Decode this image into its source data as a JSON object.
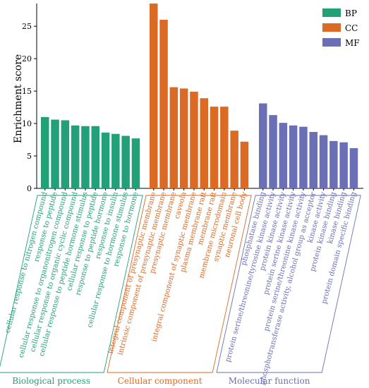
{
  "chart_data": {
    "type": "bar",
    "ylabel": "Enrichment score",
    "xlabel": "",
    "ylim": [
      0,
      28.5
    ],
    "yticks": [
      0,
      5,
      10,
      15,
      20,
      25
    ],
    "grid": false,
    "legend_position": "top-right",
    "series": [
      {
        "name": "BP",
        "group_label": "Biological process",
        "color": "#22a078",
        "categories": [
          "cellular response to nitrogen compound",
          "response to peptide",
          "cellular response to organonitrogen compound",
          "cellular response to organic cyclic compound",
          "cellular response to peptide hormone stimulus",
          "cellular response to peptide",
          "response to peptide hormone",
          "response to insulin",
          "cellular response to hormone stimulus",
          "response to hormone"
        ],
        "values": [
          11.0,
          10.6,
          10.5,
          9.7,
          9.6,
          9.6,
          8.6,
          8.4,
          8.1,
          7.7
        ]
      },
      {
        "name": "CC",
        "group_label": "Cellular component",
        "color": "#db6a25",
        "categories": [
          "integral component of presynaptic membrane",
          "intrinsic component of presynaptic membrane",
          "presynaptic membrane",
          "caveola",
          "integral component of synaptic membrane",
          "plasma membrane raft",
          "membrane raft",
          "membrane microdomain",
          "synaptic membrane",
          "neuronal cell body"
        ],
        "values": [
          28.5,
          26.0,
          15.6,
          15.4,
          14.9,
          13.9,
          12.6,
          12.6,
          8.9,
          7.2
        ]
      },
      {
        "name": "MF",
        "group_label": "Molecular function",
        "color": "#6b6fb5",
        "categories": [
          "phosphatase binding",
          "protein serine/threonine/tyrosine kinase activity",
          "protein kinase activity",
          "protein serine kinase activity",
          "protein serine/threonine kinase activity",
          "phosphotransferase activity, alcohol group as acceptor",
          "kinase activity",
          "protein kinase binding",
          "kinase binding",
          "protein domain specific binding"
        ],
        "values": [
          13.1,
          11.3,
          10.1,
          9.7,
          9.5,
          8.7,
          8.2,
          7.3,
          7.1,
          6.2
        ]
      }
    ]
  }
}
